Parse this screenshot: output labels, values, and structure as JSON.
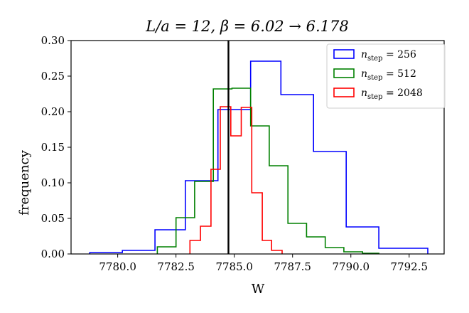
{
  "chart_data": {
    "type": "histogram",
    "title": "L/a = 12, β = 6.02 → 6.178",
    "xlabel": "W",
    "ylabel": "frequency",
    "xlim": [
      7778.0,
      7794.0
    ],
    "ylim": [
      0.0,
      0.3
    ],
    "xticks": [
      7780.0,
      7782.5,
      7785.0,
      7787.5,
      7790.0,
      7792.5
    ],
    "xtick_labels": [
      "7780.0",
      "7782.5",
      "7785.0",
      "7787.5",
      "7790.0",
      "7792.5"
    ],
    "yticks": [
      0.0,
      0.05,
      0.1,
      0.15,
      0.2,
      0.25,
      0.3
    ],
    "ytick_labels": [
      "0.00",
      "0.05",
      "0.10",
      "0.15",
      "0.20",
      "0.25",
      "0.30"
    ],
    "vline": {
      "x": 7784.75,
      "color": "#000000"
    },
    "legend_position": "top-right",
    "series": [
      {
        "name": "n_step = 256",
        "label_text": "= 256",
        "color": "#0000ff",
        "edges": [
          7778.8,
          7780.2,
          7781.6,
          7782.9,
          7784.3,
          7785.7,
          7787.0,
          7788.4,
          7789.8,
          7791.2,
          7792.5,
          7793.3
        ],
        "values": [
          0.002,
          0.005,
          0.034,
          0.103,
          0.203,
          0.271,
          0.224,
          0.144,
          0.038,
          0.008,
          0.008
        ]
      },
      {
        "name": "n_step = 512",
        "label_text": "= 512",
        "color": "#008000",
        "edges": [
          7781.7,
          7782.5,
          7783.3,
          7784.1,
          7784.9,
          7785.7,
          7786.5,
          7787.3,
          7788.1,
          7788.9,
          7789.7,
          7790.5,
          7791.2
        ],
        "values": [
          0.01,
          0.051,
          0.102,
          0.232,
          0.233,
          0.18,
          0.124,
          0.043,
          0.024,
          0.009,
          0.003,
          0.001
        ]
      },
      {
        "name": "n_step = 2048",
        "label_text": "= 2048",
        "color": "#ff0000",
        "edges": [
          7783.1,
          7783.55,
          7784.0,
          7784.4,
          7784.85,
          7785.3,
          7785.75,
          7786.2,
          7786.6,
          7787.05
        ],
        "values": [
          0.019,
          0.039,
          0.119,
          0.207,
          0.166,
          0.206,
          0.086,
          0.019,
          0.005
        ]
      }
    ]
  }
}
